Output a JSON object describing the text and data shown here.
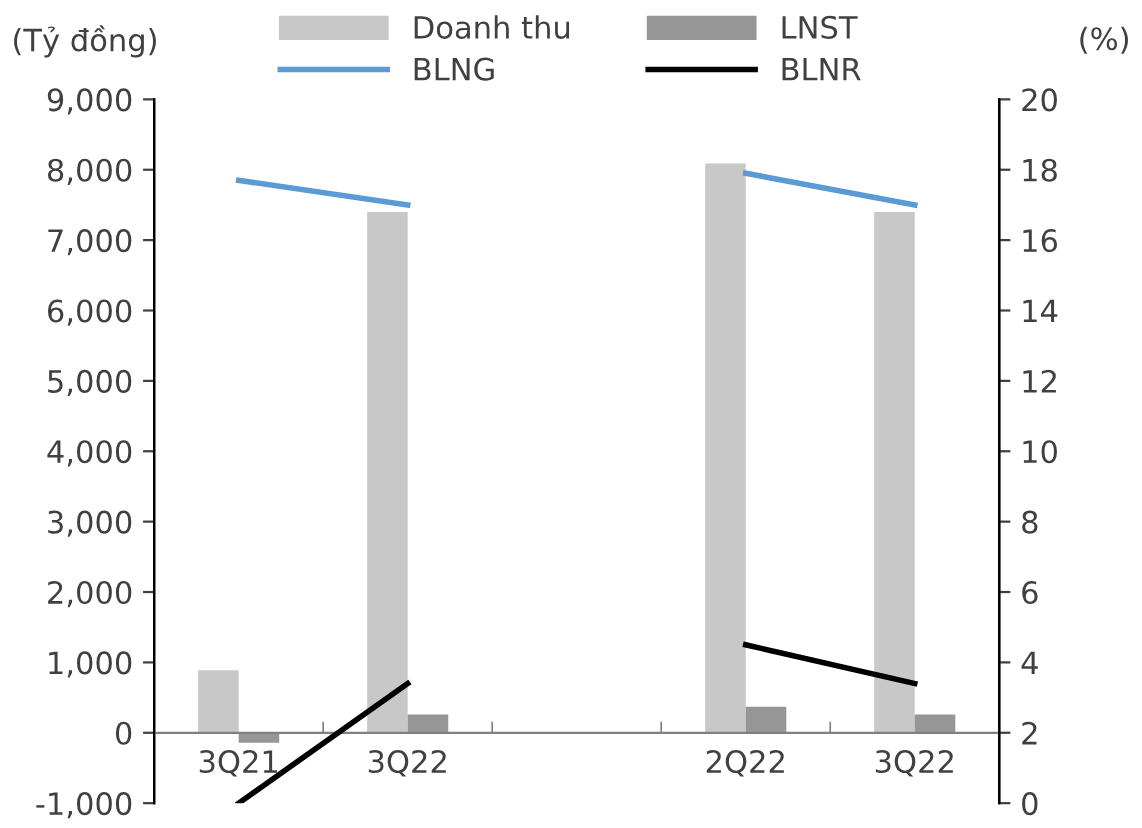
{
  "chart_data": {
    "type": "bar",
    "ylabel": "(Tỷ đồng)",
    "y2label": "(%)",
    "categories": [
      "3Q21",
      "3Q22",
      null,
      "2Q22",
      "3Q22"
    ],
    "series": [
      {
        "name": "Doanh thu",
        "color": "#c8c8c8",
        "values": [
          890,
          7400,
          null,
          8090,
          7400
        ]
      },
      {
        "name": "LNST",
        "color": "#969696",
        "values": [
          -140,
          260,
          null,
          370,
          260
        ]
      },
      {
        "name": "BLNG",
        "type": "line",
        "axis": "y2",
        "color": "#5b9bd5",
        "values": [
          17.7,
          17.0,
          null,
          17.9,
          17.0
        ]
      },
      {
        "name": "BLNR",
        "type": "line",
        "axis": "y2",
        "color": "#000000",
        "values": [
          0.0,
          3.4,
          null,
          4.5,
          3.4
        ]
      }
    ],
    "ylim": [
      -1000,
      9000
    ],
    "yticks": [
      {
        "value": -1000,
        "label": "-1,000"
      },
      {
        "value": 0,
        "label": "0"
      },
      {
        "value": 1000,
        "label": "1,000"
      },
      {
        "value": 2000,
        "label": "2,000"
      },
      {
        "value": 3000,
        "label": "3,000"
      },
      {
        "value": 4000,
        "label": "4,000"
      },
      {
        "value": 5000,
        "label": "5,000"
      },
      {
        "value": 6000,
        "label": "6,000"
      },
      {
        "value": 7000,
        "label": "7,000"
      },
      {
        "value": 8000,
        "label": "8,000"
      },
      {
        "value": 9000,
        "label": "9,000"
      }
    ],
    "y2lim": [
      0,
      20
    ],
    "y2ticks": [
      0,
      2,
      4,
      6,
      8,
      10,
      12,
      14,
      16,
      18,
      20
    ],
    "legend": "top",
    "grid": false
  }
}
